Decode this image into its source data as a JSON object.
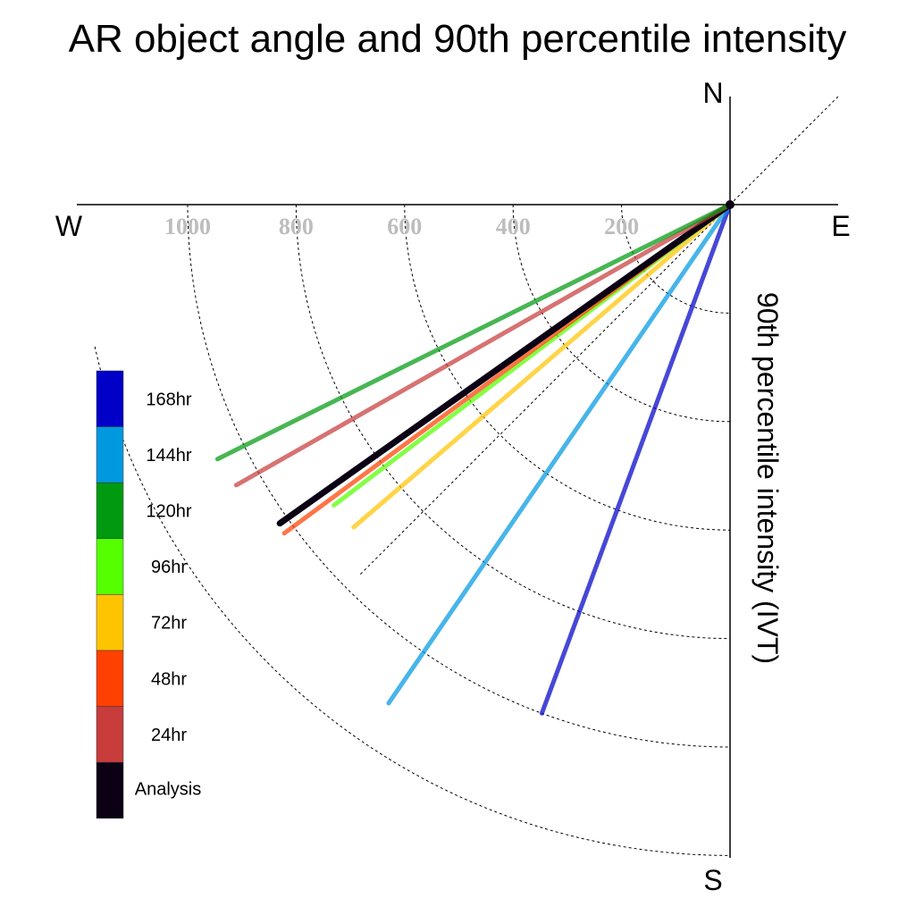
{
  "chart_data": {
    "type": "polar-line",
    "title": "AR object angle and 90th percentile intensity",
    "ylabel": "90th percentile intensity (IVT)",
    "compass": {
      "north": "N",
      "south": "S",
      "east": "E",
      "west": "W"
    },
    "radial_ticks": [
      "200",
      "400",
      "600",
      "800",
      "1000"
    ],
    "radial_tick_values": [
      200,
      400,
      600,
      800,
      1000
    ],
    "radial_max": 1200,
    "series": [
      {
        "name": "168hr",
        "color": "#0000c8",
        "angle_deg": 200.3,
        "intensity": 1000
      },
      {
        "name": "144hr",
        "color": "#0099e0",
        "angle_deg": 214.4,
        "intensity": 1114
      },
      {
        "name": "72hr",
        "color": "#ffc400",
        "angle_deg": 229.4,
        "intensity": 914
      },
      {
        "name": "96hr",
        "color": "#55ff00",
        "angle_deg": 232.8,
        "intensity": 917
      },
      {
        "name": "48hr",
        "color": "#ff4000",
        "angle_deg": 233.6,
        "intensity": 1021
      },
      {
        "name": "Analysis",
        "color": "#0b0014",
        "angle_deg": 234.7,
        "intensity": 1017
      },
      {
        "name": "24hr",
        "color": "#c83c3c",
        "angle_deg": 240.4,
        "intensity": 1047
      },
      {
        "name": "120hr",
        "color": "#009a10",
        "angle_deg": 243.6,
        "intensity": 1055
      }
    ],
    "legend": [
      {
        "label": "168hr",
        "color": "#0000c8"
      },
      {
        "label": "144hr",
        "color": "#0099e0"
      },
      {
        "label": "120hr",
        "color": "#009a10"
      },
      {
        "label": "96hr",
        "color": "#55ff00"
      },
      {
        "label": "72hr",
        "color": "#ffc400"
      },
      {
        "label": "48hr",
        "color": "#ff4000"
      },
      {
        "label": "24hr",
        "color": "#c83c3c"
      },
      {
        "label": "Analysis",
        "color": "#0b0014"
      }
    ]
  }
}
